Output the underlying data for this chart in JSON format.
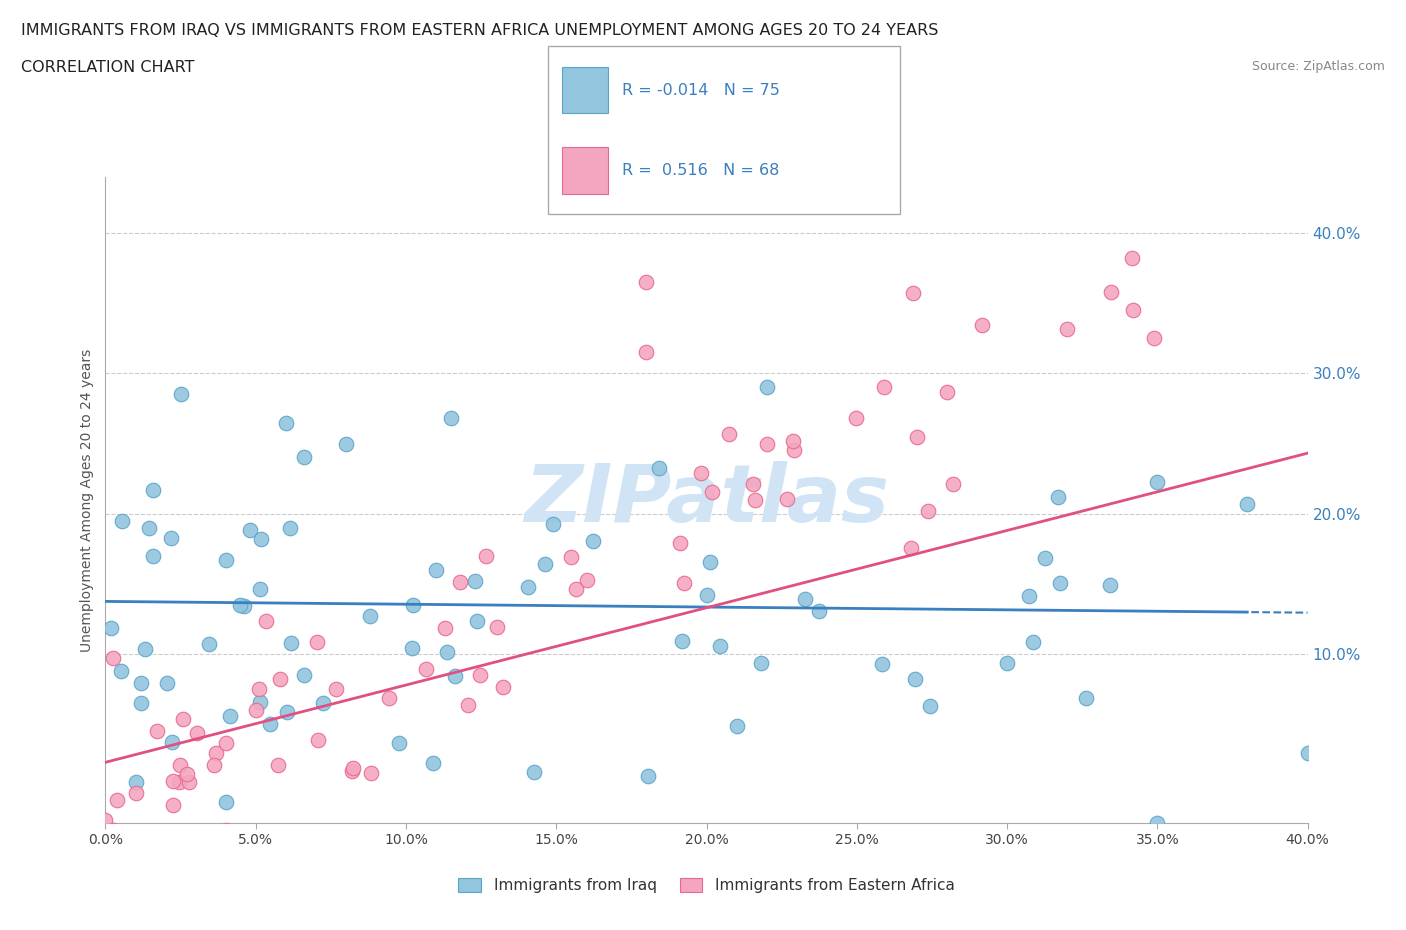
{
  "title_line1": "IMMIGRANTS FROM IRAQ VS IMMIGRANTS FROM EASTERN AFRICA UNEMPLOYMENT AMONG AGES 20 TO 24 YEARS",
  "title_line2": "CORRELATION CHART",
  "source_text": "Source: ZipAtlas.com",
  "ylabel": "Unemployment Among Ages 20 to 24 years",
  "xlim": [
    0.0,
    0.4
  ],
  "ylim": [
    -0.02,
    0.44
  ],
  "ytick_right_values": [
    0.1,
    0.2,
    0.3,
    0.4
  ],
  "r_iraq": -0.014,
  "n_iraq": 75,
  "r_africa": 0.516,
  "n_africa": 68,
  "iraq_color": "#92c5de",
  "iraq_edge_color": "#5ba3c9",
  "africa_color": "#f4a6c0",
  "africa_edge_color": "#e8688a",
  "iraq_line_color": "#3a7fbf",
  "africa_line_color": "#e05080",
  "watermark_color": "#d0e4f5",
  "legend_iraq_label": "Immigrants from Iraq",
  "legend_africa_label": "Immigrants from Eastern Africa"
}
